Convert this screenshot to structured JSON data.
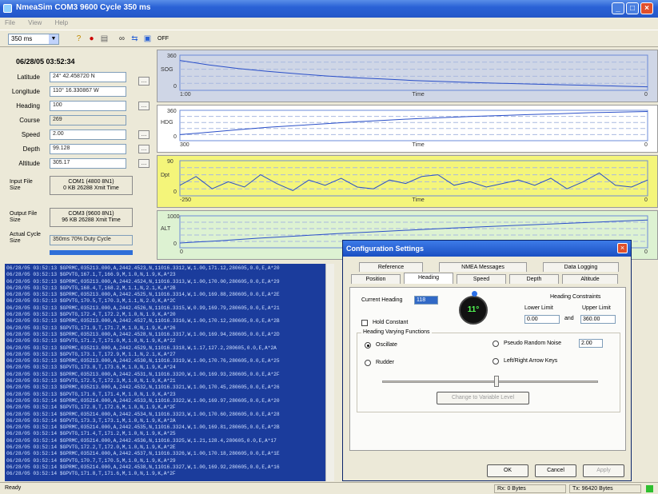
{
  "window": {
    "title": "NmeaSim COM3 9600 Cycle 350 ms"
  },
  "menu": [
    "File",
    "View",
    "Help"
  ],
  "toolbar": {
    "cycle": "350 ms",
    "extra": "OFF"
  },
  "left": {
    "datetime": "06/28/05 03:52:34",
    "fields": [
      {
        "label": "Latitude",
        "value": "24° 42.458720 N"
      },
      {
        "label": "Longitude",
        "value": "110° 16.330867 W"
      },
      {
        "label": "Heading",
        "value": "100"
      },
      {
        "label": "Course",
        "value": "269"
      },
      {
        "label": "Speed",
        "value": "2.00"
      },
      {
        "label": "Depth",
        "value": "99.128"
      },
      {
        "label": "Altitude",
        "value": "305.17"
      }
    ],
    "input_file_label": "Input File Size",
    "input_file": [
      "COM1 (4800 8N1)",
      "0 KB 26288 Xmit Time"
    ],
    "output_file_label": "Output File Size",
    "output_file": [
      "COM3 (9600 8N1)",
      "96 KB 26288 Xmit Time"
    ],
    "actual_cycle_label": "Actual Cycle Size",
    "actual_cycle": "350ms 70% Duty Cycle"
  },
  "charts": [
    {
      "ylabel": "SOG",
      "ymax": "360",
      "ymin": "0",
      "xmin": "1:00",
      "xmax": "0",
      "xlabel": "Time",
      "color": "#cfd6e6",
      "series": [
        0.85,
        0.72,
        0.62,
        0.54,
        0.47,
        0.41,
        0.36,
        0.32,
        0.28,
        0.25,
        0.22,
        0.2,
        0.18,
        0.16,
        0.14,
        0.12,
        0.1
      ]
    },
    {
      "ylabel": "HDG",
      "ymax": "360",
      "ymin": "0",
      "xmin": "300",
      "xmax": "0",
      "xlabel": "Time",
      "color": "#ffffff",
      "series": [
        0.2,
        0.28,
        0.36,
        0.44,
        0.5,
        0.56,
        0.62,
        0.67,
        0.72,
        0.76,
        0.8,
        0.83,
        0.86,
        0.89,
        0.92,
        0.94,
        0.96
      ]
    },
    {
      "ylabel": "Dpt",
      "ymax": "90",
      "ymin": "0",
      "xmin": "-250",
      "xmax": "0",
      "xlabel": "Time",
      "color": "#f4f57a",
      "series": [
        0.3,
        0.55,
        0.2,
        0.4,
        0.25,
        0.6,
        0.35,
        0.15,
        0.45,
        0.3,
        0.5,
        0.25,
        0.2,
        0.45,
        0.35,
        0.55,
        0.6,
        0.3,
        0.4,
        0.25,
        0.35,
        0.45,
        0.3,
        0.5,
        0.2,
        0.4,
        0.65,
        0.3,
        0.25,
        0.45
      ]
    },
    {
      "ylabel": "ALT",
      "ymax": "1000",
      "ymin": "0",
      "xmin": "0",
      "xmax": "0",
      "xlabel": "Time",
      "color": "#ddf2d2",
      "series": [
        0.15,
        0.22,
        0.3,
        0.37,
        0.44,
        0.5,
        0.56,
        0.62,
        0.67,
        0.72,
        0.77,
        0.82,
        0.87
      ]
    }
  ],
  "log": [
    "06/28/05 03:52:13 $GPRMC,035213.000,A,2442.4523,N,11016.3312,W,1.00,171.12,280605,0.0,E,A*20",
    "06/28/05 03:52:13 $GPVTG,167.1,T,166.9,M,1.0,N,1.9,K,A*23",
    "06/28/05 03:52:13 $GPRMC,035213.000,A,2442.4524,N,11016.3313,W,1.00,170.00,280605,0.0,E,A*29",
    "06/28/05 03:52:13 $GPVTG,168.4,T,168.2,M,1.1,N,2.1,K,A*2B",
    "06/28/05 03:52:13 $GPRMC,035213.000,A,2442.4525,N,11016.3314,W,1.00,169.88,280605,0.0,E,A*2E",
    "06/28/05 03:52:13 $GPVTG,170.5,T,170.3,M,1.1,N,2.0,K,A*2C",
    "06/28/05 03:52:13 $GPRMC,035213.000,A,2442.4526,N,11016.3315,W,0.99,169.79,280605,0.0,E,A*21",
    "06/28/05 03:52:13 $GPVTG,172.4,T,172.2,M,1.0,N,1.9,K,A*20",
    "06/28/05 03:52:13 $GPRMC,035213.000,A,2442.4527,N,11016.3316,W,1.00,170.12,280605,0.0,E,A*2B",
    "06/28/05 03:52:13 $GPVTG,171.9,T,171.7,M,1.0,N,1.9,K,A*26",
    "06/28/05 03:52:13 $GPRMC,035213.000,A,2442.4528,N,11016.3317,W,1.00,169.94,280605,0.0,E,A*2D",
    "06/28/05 03:52:13 $GPVTG,171.2,T,171.0,M,1.0,N,1.9,K,A*22",
    "06/28/05 03:52:13 $GPRMC,035213.000,A,2442.4529,N,11016.3318,W,1.17,127.2,280605,0.0,E,A*2A",
    "06/28/05 03:52:13 $GPVTG,173.1,T,172.9,M,1.1,N,2.1,K,A*27",
    "06/28/05 03:52:13 $GPRMC,035213.000,A,2442.4530,N,11016.3319,W,1.00,170.76,280605,0.0,E,A*25",
    "06/28/05 03:52:13 $GPVTG,173.8,T,173.6,M,1.0,N,1.9,K,A*24",
    "06/28/05 03:52:13 $GPRMC,035213.000,A,2442.4531,N,11016.3320,W,1.00,169.93,280605,0.0,E,A*2F",
    "06/28/05 03:52:13 $GPVTG,172.5,T,172.3,M,1.0,N,1.9,K,A*21",
    "06/28/05 03:52:13 $GPRMC,035213.000,A,2442.4532,N,11016.3321,W,1.00,170.45,280605,0.0,E,A*26",
    "06/28/05 03:52:13 $GPVTG,171.6,T,171.4,M,1.0,N,1.9,K,A*23",
    "06/28/05 03:52:14 $GPRMC,035214.000,A,2442.4533,N,11016.3322,W,1.00,169.97,280605,0.0,E,A*20",
    "06/28/05 03:52:14 $GPVTG,172.8,T,172.6,M,1.0,N,1.9,K,A*2F",
    "06/28/05 03:52:14 $GPRMC,035214.000,A,2442.4534,N,11016.3323,W,1.00,170.60,280605,0.0,E,A*28",
    "06/28/05 03:52:14 $GPVTG,173.3,T,173.1,M,1.0,N,1.9,K,A*2A",
    "06/28/05 03:52:14 $GPRMC,035214.000,A,2442.4535,N,11016.3324,W,1.00,169.81,280605,0.0,E,A*2B",
    "06/28/05 03:52:14 $GPVTG,171.4,T,171.2,M,1.0,N,1.9,K,A*25",
    "06/28/05 03:52:14 $GPRMC,035214.000,A,2442.4536,N,11016.3325,W,1.21,128.4,280605,0.0,E,A*17",
    "06/28/05 03:52:14 $GPVTG,172.2,T,172.0,M,1.0,N,1.9,K,A*2E",
    "06/28/05 03:52:14 $GPRMC,035214.000,A,2442.4537,N,11016.3326,W,1.00,170.18,280605,0.0,E,A*1E",
    "06/28/05 03:52:14 $GPVTG,170.7,T,170.5,M,1.0,N,1.9,K,A*29",
    "06/28/05 03:52:14 $GPRMC,035214.000,A,2442.4538,N,11016.3327,W,1.00,169.92,280605,0.0,E,A*16",
    "06/28/05 03:52:14 $GPVTG,171.8,T,171.6,M,1.0,N,1.9,K,A*2F"
  ],
  "status": {
    "ready": "Ready",
    "rx": "Rx: 0 Bytes",
    "tx": "Tx: 96420 Bytes"
  },
  "dialog": {
    "title": "Configuration Settings",
    "tabs_row1": [
      "Reference",
      "NMEA Messages",
      "Data Logging"
    ],
    "tabs_row2": [
      "Position",
      "Heading",
      "Speed",
      "Depth",
      "Altitude"
    ],
    "current_heading_label": "Current Heading",
    "current_heading": "118",
    "dial": "11°",
    "hold_constant": "Hold Constant",
    "constraints_title": "Heading Constraints",
    "lower_label": "Lower Limit",
    "lower": "0.00",
    "and": "and",
    "upper_label": "Upper Limit",
    "upper": "360.00",
    "group_title": "Heading Varying Functions",
    "opt_oscillate": "Oscillate",
    "opt_random": "Pseudo Random Noise",
    "random_val": "2.00",
    "opt_rudder": "Rudder",
    "opt_leftright": "Left/Right Arrow Keys",
    "change_btn": "Change to Variable Level",
    "ok": "OK",
    "cancel": "Cancel",
    "apply": "Apply"
  }
}
